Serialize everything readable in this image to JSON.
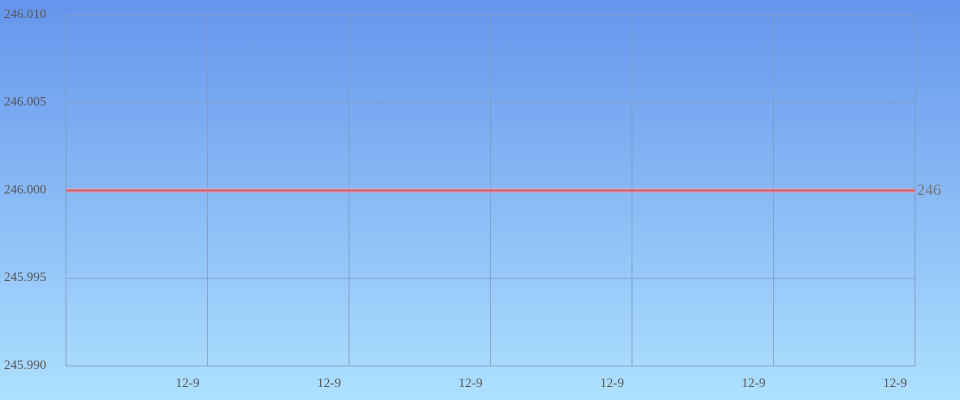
{
  "chart_data": {
    "type": "line",
    "categories": [
      null,
      "12-9",
      "12-9",
      "12-9",
      "12-9",
      "12-9",
      "12-9"
    ],
    "series": [
      {
        "color": "#e05a64",
        "values": [
          246,
          246,
          246,
          246,
          246,
          246,
          246
        ]
      }
    ],
    "ylim": [
      245.99,
      246.01
    ],
    "yticks": [
      {
        "value": 245.99,
        "label": "245.990"
      },
      245.995,
      {
        "value": 246,
        "label": "246.000"
      },
      246.005,
      {
        "value": 246.01,
        "label": "246.010"
      }
    ],
    "grid": true
  }
}
